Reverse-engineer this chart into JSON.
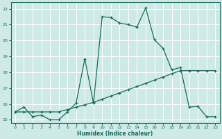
{
  "xlabel": "Humidex (Indice chaleur)",
  "bg_color": "#ceeae7",
  "grid_color": "#ffffff",
  "line_color": "#1a6b5a",
  "xlim": [
    -0.5,
    23.5
  ],
  "ylim": [
    14.8,
    22.4
  ],
  "xticks": [
    0,
    1,
    2,
    3,
    4,
    5,
    6,
    7,
    8,
    9,
    10,
    11,
    12,
    13,
    14,
    15,
    16,
    17,
    18,
    19,
    20,
    21,
    22,
    23
  ],
  "yticks": [
    15,
    16,
    17,
    18,
    19,
    20,
    21,
    22
  ],
  "curve1_x": [
    0,
    1,
    2,
    3,
    4,
    5,
    6,
    7,
    8,
    9,
    10,
    11,
    12,
    13,
    14,
    15,
    16,
    17,
    18,
    19,
    20,
    21,
    22,
    23
  ],
  "curve1_y": [
    15.5,
    15.8,
    15.2,
    15.3,
    15.0,
    15.0,
    15.5,
    16.05,
    18.85,
    16.05,
    21.5,
    21.45,
    21.1,
    21.0,
    20.85,
    22.05,
    20.05,
    19.5,
    18.15,
    18.3,
    15.8,
    15.85,
    15.2,
    15.2
  ],
  "curve2_x": [
    0,
    1,
    2,
    3,
    4,
    5,
    6,
    7,
    8,
    9,
    10,
    11,
    12,
    13,
    14,
    15,
    16,
    17,
    18,
    19,
    20,
    21,
    22,
    23
  ],
  "curve2_y": [
    15.5,
    15.5,
    15.5,
    15.5,
    15.5,
    15.5,
    15.65,
    15.8,
    15.95,
    16.1,
    16.3,
    16.5,
    16.7,
    16.9,
    17.1,
    17.3,
    17.5,
    17.7,
    17.9,
    18.1,
    18.1,
    18.1,
    18.1,
    18.1
  ]
}
